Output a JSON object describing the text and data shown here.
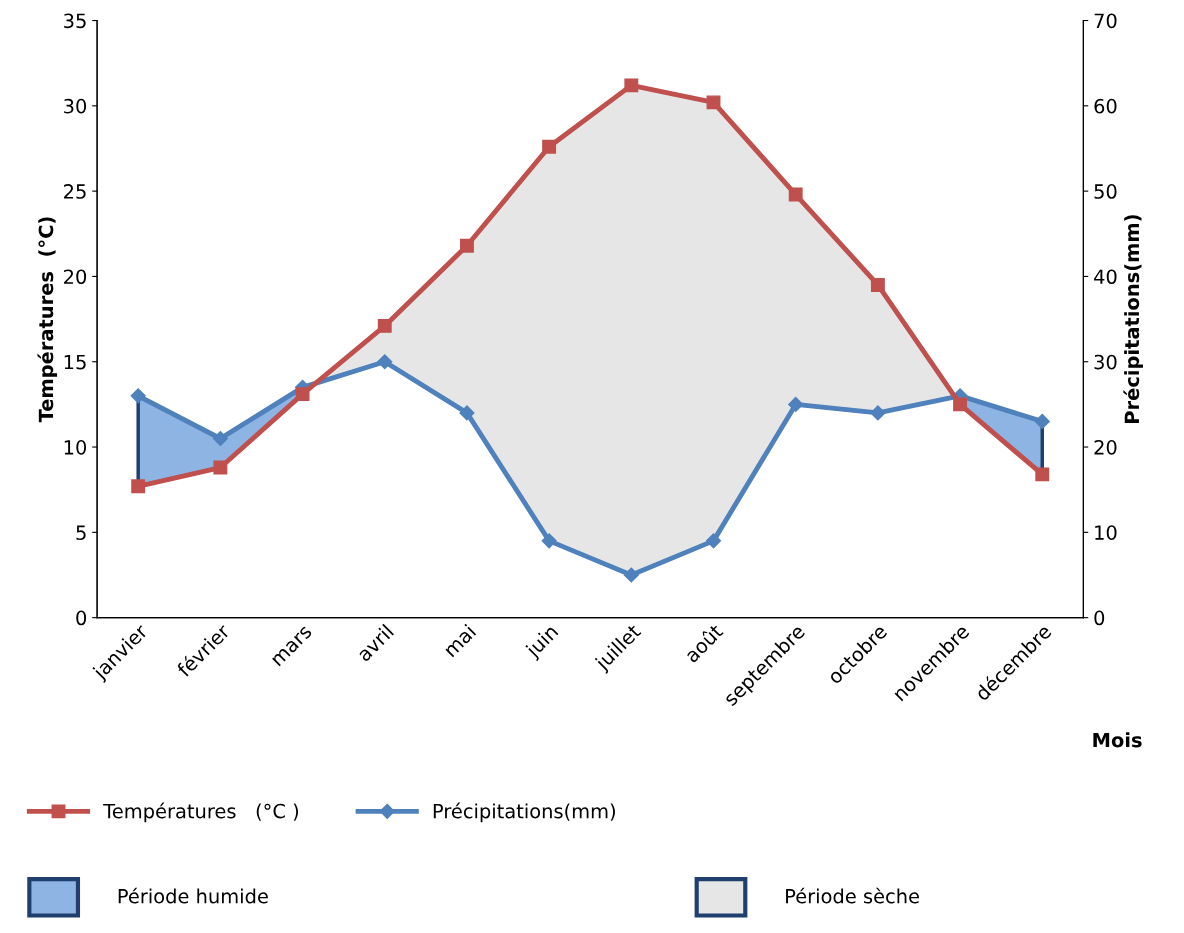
{
  "chart_data": {
    "type": "line",
    "xlabel": "Mois",
    "ylabel": "Températures  (°C)",
    "y2label": "Précipitations(mm)",
    "categories": [
      "janvier",
      "février",
      "mars",
      "avril",
      "mai",
      "juin",
      "juillet",
      "août",
      "septembre",
      "octobre",
      "novembre",
      "décembre"
    ],
    "ylim": [
      0,
      35
    ],
    "yticks": [
      0,
      5,
      10,
      15,
      20,
      25,
      30,
      35
    ],
    "y2lim": [
      0,
      70
    ],
    "y2ticks": [
      0,
      10,
      20,
      30,
      40,
      50,
      60,
      70
    ],
    "series": [
      {
        "name": "Températures   (°C )",
        "color": "#c0504d",
        "marker": "square",
        "values": [
          7.7,
          8.8,
          13.1,
          17.1,
          21.8,
          27.6,
          31.2,
          30.2,
          24.8,
          19.5,
          12.5,
          8.4
        ]
      },
      {
        "name": "Précipitations(mm)",
        "color": "#4f81bd",
        "marker": "diamond",
        "axis": "y2",
        "values": [
          26,
          21,
          27,
          30,
          24,
          9,
          5,
          9,
          25,
          24,
          26,
          23
        ]
      }
    ],
    "annotations": [
      "Période humide",
      "Période sèche"
    ],
    "grid": false,
    "legend": "bottom"
  }
}
